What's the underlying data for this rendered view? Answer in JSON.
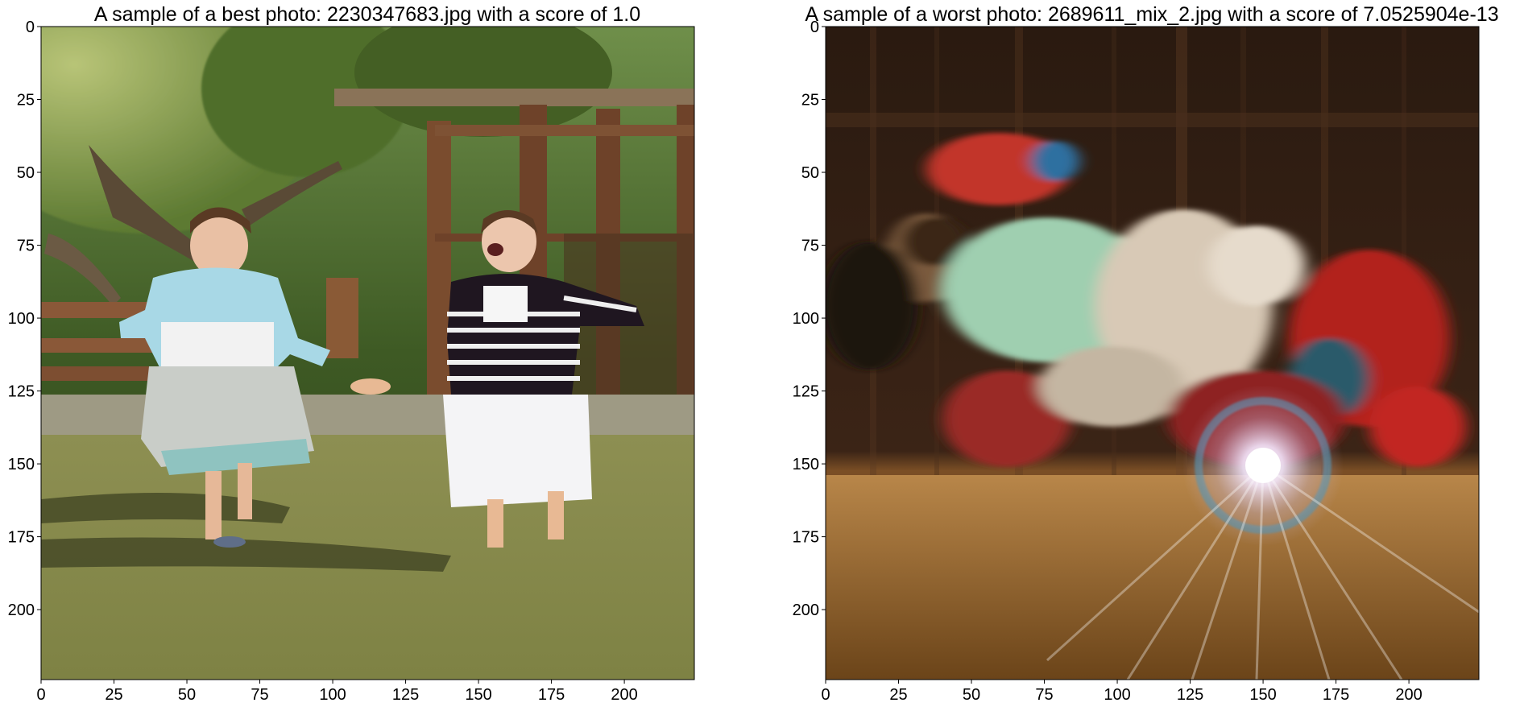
{
  "figure": {
    "panels": [
      {
        "title": "A sample of a best photo: 2230347683.jpg with a score of 1.0",
        "x_ticks": [
          "0",
          "25",
          "50",
          "75",
          "100",
          "125",
          "150",
          "175",
          "200"
        ],
        "y_ticks": [
          "0",
          "25",
          "50",
          "75",
          "100",
          "125",
          "150",
          "175",
          "200"
        ],
        "x_range": [
          0,
          224
        ],
        "y_range": [
          0,
          224
        ],
        "image_description": "Two girls running barefoot on grass toward the camera in a garden with a wooden pergola and trees behind them; one wears a light blue cardigan and white skirt, the other a black-and-white striped top and white skirt."
      },
      {
        "title": "A sample of a worst photo: 2689611_mix_2.jpg with a score of 7.0525904e-13",
        "x_ticks": [
          "0",
          "25",
          "50",
          "75",
          "100",
          "125",
          "150",
          "175",
          "200"
        ],
        "y_ticks": [
          "0",
          "25",
          "50",
          "75",
          "100",
          "125",
          "150",
          "175",
          "200"
        ],
        "x_range": [
          0,
          224
        ],
        "y_range": [
          0,
          224
        ],
        "image_description": "Heavily motion-blurred dark image of a person lying on a wooden floor wearing colorful patterned clothing, with a bright lens-flare light with a blue ring in the lower center."
      }
    ]
  }
}
